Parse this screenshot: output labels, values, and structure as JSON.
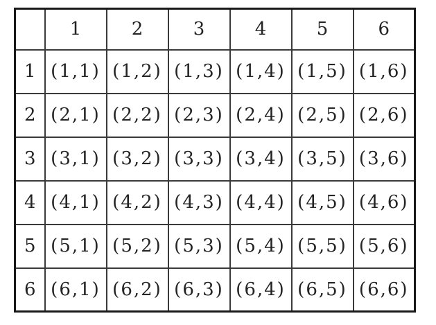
{
  "colors": {
    "background": "#ffffff",
    "border_outer": "#181818",
    "border_inner": "#3a3a3a",
    "text": "#242424"
  },
  "table": {
    "corner_label": "",
    "column_headers": [
      "1",
      "2",
      "3",
      "4",
      "5",
      "6"
    ],
    "row_headers": [
      "1",
      "2",
      "3",
      "4",
      "5",
      "6"
    ],
    "rows": [
      [
        "(1,1)",
        "(1,2)",
        "(1,3)",
        "(1,4)",
        "(1,5)",
        "(1,6)"
      ],
      [
        "(2,1)",
        "(2,2)",
        "(2,3)",
        "(2,4)",
        "(2,5)",
        "(2,6)"
      ],
      [
        "(3,1)",
        "(3,2)",
        "(3,3)",
        "(3,4)",
        "(3,5)",
        "(3,6)"
      ],
      [
        "(4,1)",
        "(4,2)",
        "(4,3)",
        "(4,4)",
        "(4,5)",
        "(4,6)"
      ],
      [
        "(5,1)",
        "(5,2)",
        "(5,3)",
        "(5,4)",
        "(5,5)",
        "(5,6)"
      ],
      [
        "(6,1)",
        "(6,2)",
        "(6,3)",
        "(6,4)",
        "(6,5)",
        "(6,6)"
      ]
    ]
  },
  "chart_data": {
    "type": "table",
    "title": "",
    "columns": [
      "",
      "1",
      "2",
      "3",
      "4",
      "5",
      "6"
    ],
    "rows": [
      [
        "1",
        "(1,1)",
        "(1,2)",
        "(1,3)",
        "(1,4)",
        "(1,5)",
        "(1,6)"
      ],
      [
        "2",
        "(2,1)",
        "(2,2)",
        "(2,3)",
        "(2,4)",
        "(2,5)",
        "(2,6)"
      ],
      [
        "3",
        "(3,1)",
        "(3,2)",
        "(3,3)",
        "(3,4)",
        "(3,5)",
        "(3,6)"
      ],
      [
        "4",
        "(4,1)",
        "(4,2)",
        "(4,3)",
        "(4,4)",
        "(4,5)",
        "(4,6)"
      ],
      [
        "5",
        "(5,1)",
        "(5,2)",
        "(5,3)",
        "(5,4)",
        "(5,5)",
        "(5,6)"
      ],
      [
        "6",
        "(6,1)",
        "(6,2)",
        "(6,3)",
        "(6,4)",
        "(6,5)",
        "(6,6)"
      ]
    ]
  }
}
